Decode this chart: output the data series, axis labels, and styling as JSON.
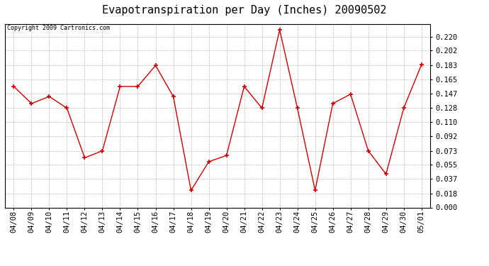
{
  "title": "Evapotranspiration per Day (Inches) 20090502",
  "copyright": "Copyright 2009 Cartronics.com",
  "dates": [
    "04/08",
    "04/09",
    "04/10",
    "04/11",
    "04/12",
    "04/13",
    "04/14",
    "04/15",
    "04/16",
    "04/17",
    "04/18",
    "04/19",
    "04/20",
    "04/21",
    "04/22",
    "04/23",
    "04/24",
    "04/25",
    "04/26",
    "04/27",
    "04/28",
    "04/29",
    "04/30",
    "05/01"
  ],
  "values": [
    0.156,
    0.134,
    0.143,
    0.128,
    0.064,
    0.073,
    0.156,
    0.156,
    0.183,
    0.143,
    0.022,
    0.059,
    0.067,
    0.156,
    0.128,
    0.229,
    0.128,
    0.022,
    0.134,
    0.146,
    0.073,
    0.043,
    0.128,
    0.184
  ],
  "line_color": "#cc0000",
  "marker": "+",
  "bg_color": "#ffffff",
  "plot_bg_color": "#ffffff",
  "grid_color": "#bbbbbb",
  "ylim": [
    0.0,
    0.2365
  ],
  "yticks": [
    0.0,
    0.018,
    0.037,
    0.055,
    0.073,
    0.092,
    0.11,
    0.128,
    0.147,
    0.165,
    0.183,
    0.202,
    0.22
  ],
  "title_fontsize": 11,
  "copyright_fontsize": 6,
  "tick_fontsize": 7.5,
  "marker_size": 4,
  "linewidth": 1.0
}
